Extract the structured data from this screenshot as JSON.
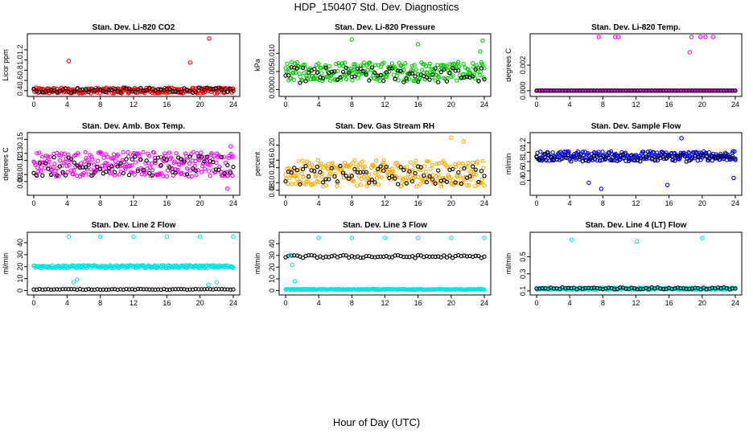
{
  "title": "HDP_150407  Std. Dev. Diagnostics",
  "xlabel": "Hour of Day (UTC)",
  "chart_data": [
    {
      "type": "scatter",
      "title": "Stan. Dev. Li-820 CO2",
      "ylabel": "Licor ppm",
      "color": "#ff0000",
      "xlim": [
        0,
        24
      ],
      "xticks": [
        0,
        4,
        8,
        12,
        16,
        20,
        24
      ],
      "ylim": [
        0.35,
        1.45
      ],
      "yticks": [
        0.4,
        0.6,
        0.8,
        1.0,
        1.2
      ],
      "base": 0.4,
      "spread": 0.06,
      "black_base": 0.41,
      "black_spread": 0.05,
      "outliers": [
        [
          4.2,
          0.98
        ],
        [
          18.8,
          0.95
        ],
        [
          21.1,
          1.42
        ]
      ]
    },
    {
      "type": "scatter",
      "title": "Stan. Dev. Li-820 Pressure",
      "ylabel": "kPa",
      "color": "#00cc00",
      "xlim": [
        0,
        24
      ],
      "xticks": [
        0,
        4,
        8,
        12,
        16,
        20,
        24
      ],
      "ylim": [
        -0.001,
        0.0145
      ],
      "yticks": [
        0.0,
        0.005,
        0.01
      ],
      "base": 0.005,
      "spread": 0.0026,
      "black_base": 0.004,
      "black_spread": 0.0022,
      "outliers": [
        [
          8,
          0.0138
        ],
        [
          23.8,
          0.0135
        ],
        [
          16,
          0.0125
        ],
        [
          23.5,
          0.0105
        ]
      ]
    },
    {
      "type": "scatter",
      "title": "Stan. Dev. Li-820 Temp.",
      "ylabel": "degrees C",
      "color": "#ff00ff",
      "xlim": [
        0,
        24
      ],
      "xticks": [
        0,
        4,
        8,
        12,
        16,
        20,
        24
      ],
      "ylim": [
        -0.0002,
        0.0042
      ],
      "yticks": [
        0.0,
        0.002
      ],
      "base": 0.0,
      "spread": 0.0,
      "black_base": 0.0,
      "black_spread": 0.0,
      "outliers": [
        [
          7.5,
          0.0042
        ],
        [
          9.5,
          0.0042
        ],
        [
          9.9,
          0.0042
        ],
        [
          18.5,
          0.003
        ],
        [
          18.7,
          0.0042
        ],
        [
          19.8,
          0.0042
        ],
        [
          20.4,
          0.0042
        ],
        [
          21.3,
          0.0042
        ]
      ]
    },
    {
      "type": "scatter",
      "title": "Stan. Dev. Amb. Box Temp.",
      "ylabel": "degrees C",
      "color": "#ff00ff",
      "xlim": [
        0,
        24
      ],
      "xticks": [
        0,
        4,
        8,
        12,
        16,
        20,
        24
      ],
      "ylim": [
        0.075,
        0.155
      ],
      "yticks": [
        0.09,
        0.1,
        0.12,
        0.13,
        0.15
      ],
      "base": 0.115,
      "spread": 0.018,
      "black_base": 0.112,
      "black_spread": 0.014,
      "outliers": [
        [
          23.7,
          0.14
        ],
        [
          23.3,
          0.08
        ]
      ]
    },
    {
      "type": "scatter",
      "title": "Stan. Dev. Gas Stream RH",
      "ylabel": "percent",
      "color": "#ffaa00",
      "xlim": [
        0,
        24
      ],
      "xticks": [
        0,
        4,
        8,
        12,
        16,
        20,
        24
      ],
      "ylim": [
        0.075,
        0.225
      ],
      "yticks": [
        0.08,
        0.1,
        0.14,
        0.16,
        0.2
      ],
      "base": 0.125,
      "spread": 0.035,
      "black_base": 0.12,
      "black_spread": 0.025,
      "outliers": [
        [
          20,
          0.22
        ],
        [
          21.5,
          0.21
        ]
      ]
    },
    {
      "type": "scatter",
      "title": "Stan. Dev. Sample Flow",
      "ylabel": "ml/min",
      "color": "#0000ff",
      "xlim": [
        0,
        24
      ],
      "xticks": [
        0,
        4,
        8,
        12,
        16,
        20,
        24
      ],
      "ylim": [
        0.15,
        1.35
      ],
      "yticks": [
        0.4,
        0.6,
        0.8,
        1.0,
        1.2
      ],
      "base": 0.92,
      "spread": 0.1,
      "black_base": 0.88,
      "black_spread": 0.08,
      "outliers": [
        [
          7.8,
          0.22
        ],
        [
          6.3,
          0.35
        ],
        [
          15.8,
          0.3
        ],
        [
          23.8,
          0.45
        ],
        [
          17.5,
          1.3
        ]
      ]
    },
    {
      "type": "scatter",
      "title": "Stan. Dev. Line 2 Flow",
      "ylabel": "ml/min",
      "color": "#00e5e5",
      "xlim": [
        0,
        24
      ],
      "xticks": [
        0,
        4,
        8,
        12,
        16,
        20,
        24
      ],
      "ylim": [
        -1,
        46
      ],
      "yticks": [
        0,
        10,
        20,
        30,
        40
      ],
      "base": 20,
      "spread": 1.2,
      "black_base": 1,
      "black_spread": 0.3,
      "outliers": [
        [
          4.2,
          45
        ],
        [
          8,
          45
        ],
        [
          12,
          45
        ],
        [
          16,
          45
        ],
        [
          20,
          45
        ],
        [
          24,
          45
        ],
        [
          4.8,
          7
        ],
        [
          5.2,
          9
        ],
        [
          21,
          5
        ],
        [
          22,
          7
        ]
      ]
    },
    {
      "type": "scatter",
      "title": "Stan. Dev. Line 3 Flow",
      "ylabel": "ml/min",
      "color": "#00e5e5",
      "xlim": [
        0,
        24
      ],
      "xticks": [
        0,
        4,
        8,
        12,
        16,
        20,
        24
      ],
      "ylim": [
        -1,
        47
      ],
      "yticks": [
        0,
        10,
        20,
        30,
        40
      ],
      "base": 1,
      "spread": 0.3,
      "black_base": 29,
      "black_spread": 1.2,
      "outliers": [
        [
          4,
          45
        ],
        [
          8,
          45
        ],
        [
          12,
          45
        ],
        [
          16,
          45
        ],
        [
          20,
          45
        ],
        [
          24,
          45
        ],
        [
          0.5,
          30
        ],
        [
          0.8,
          22
        ],
        [
          1.1,
          8
        ]
      ]
    },
    {
      "type": "scatter",
      "title": "Stan. Dev. Line 4 (LT) Flow",
      "ylabel": "ml/min",
      "color": "#00e5e5",
      "xlim": [
        0,
        24
      ],
      "xticks": [
        0,
        4,
        8,
        12,
        16,
        20,
        24
      ],
      "ylim": [
        0.09,
        0.75
      ],
      "yticks": [
        0.1,
        0.3,
        0.5
      ],
      "base": 0.125,
      "spread": 0.012,
      "black_base": 0.13,
      "black_spread": 0.012,
      "outliers": [
        [
          4.2,
          0.7
        ],
        [
          12.1,
          0.68
        ],
        [
          20,
          0.72
        ]
      ]
    }
  ]
}
